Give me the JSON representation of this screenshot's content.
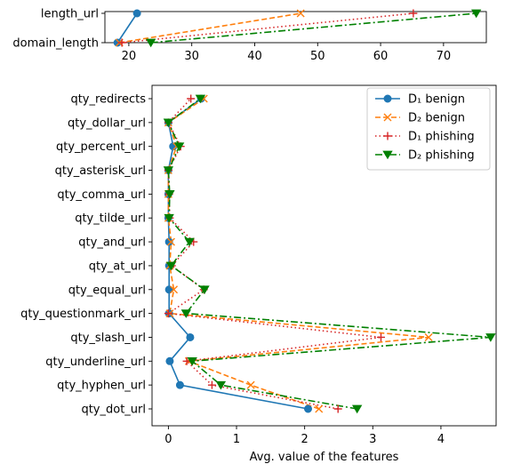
{
  "chart_data": [
    {
      "type": "line",
      "orientation": "horizontal",
      "categories": [
        "domain_length",
        "length_url"
      ],
      "x_ticks": [
        20,
        30,
        40,
        50,
        60,
        70
      ],
      "xlim": [
        16.2,
        76.8
      ],
      "xlabel": "",
      "ylabel": "",
      "grid": false,
      "series": [
        {
          "name": "D₁ benign",
          "color": "#1f77b4",
          "marker": "circle",
          "dash": "solid",
          "values": [
            18.2,
            21.3
          ]
        },
        {
          "name": "D₂ benign",
          "color": "#ff7f0e",
          "marker": "x",
          "dash": "dashed",
          "values": [
            18.5,
            47.3
          ]
        },
        {
          "name": "D₁ phishing",
          "color": "#d62728",
          "marker": "plus",
          "dash": "dotted",
          "values": [
            18.9,
            65.2
          ]
        },
        {
          "name": "D₂ phishing",
          "color": "#008000",
          "marker": "triangle-down",
          "dash": "dashdot",
          "values": [
            23.5,
            75.2
          ]
        }
      ]
    },
    {
      "type": "line",
      "orientation": "horizontal",
      "categories": [
        "qty_dot_url",
        "qty_hyphen_url",
        "qty_underline_url",
        "qty_slash_url",
        "qty_questionmark_url",
        "qty_equal_url",
        "qty_at_url",
        "qty_and_url",
        "qty_tilde_url",
        "qty_comma_url",
        "qty_asterisk_url",
        "qty_percent_url",
        "qty_dollar_url",
        "qty_redirects"
      ],
      "x_ticks": [
        0,
        1,
        2,
        3,
        4
      ],
      "xlim": [
        -0.24,
        4.81
      ],
      "xlabel": "Avg. value of the features",
      "ylabel": "",
      "grid": false,
      "legend_position": "top-right",
      "series": [
        {
          "name": "D₁ benign",
          "color": "#1f77b4",
          "marker": "circle",
          "dash": "solid",
          "values": [
            2.05,
            0.17,
            0.02,
            0.32,
            0.01,
            0.01,
            0.01,
            0.01,
            0.0,
            0.0,
            0.0,
            0.07,
            0.0,
            0.48
          ]
        },
        {
          "name": "D₂ benign",
          "color": "#ff7f0e",
          "marker": "x",
          "dash": "dashed",
          "values": [
            2.21,
            1.21,
            0.3,
            3.82,
            0.02,
            0.08,
            0.02,
            0.04,
            0.0,
            0.0,
            0.0,
            0.12,
            0.0,
            0.52
          ]
        },
        {
          "name": "D₁ phishing",
          "color": "#d62728",
          "marker": "plus",
          "dash": "dotted",
          "values": [
            2.49,
            0.64,
            0.27,
            3.12,
            0.0,
            0.52,
            0.05,
            0.37,
            0.02,
            0.01,
            0.0,
            0.18,
            0.0,
            0.33
          ]
        },
        {
          "name": "D₂ phishing",
          "color": "#008000",
          "marker": "triangle-down",
          "dash": "dashdot",
          "values": [
            2.77,
            0.77,
            0.35,
            4.73,
            0.26,
            0.53,
            0.04,
            0.31,
            0.01,
            0.02,
            0.0,
            0.16,
            0.0,
            0.47
          ]
        }
      ]
    }
  ]
}
